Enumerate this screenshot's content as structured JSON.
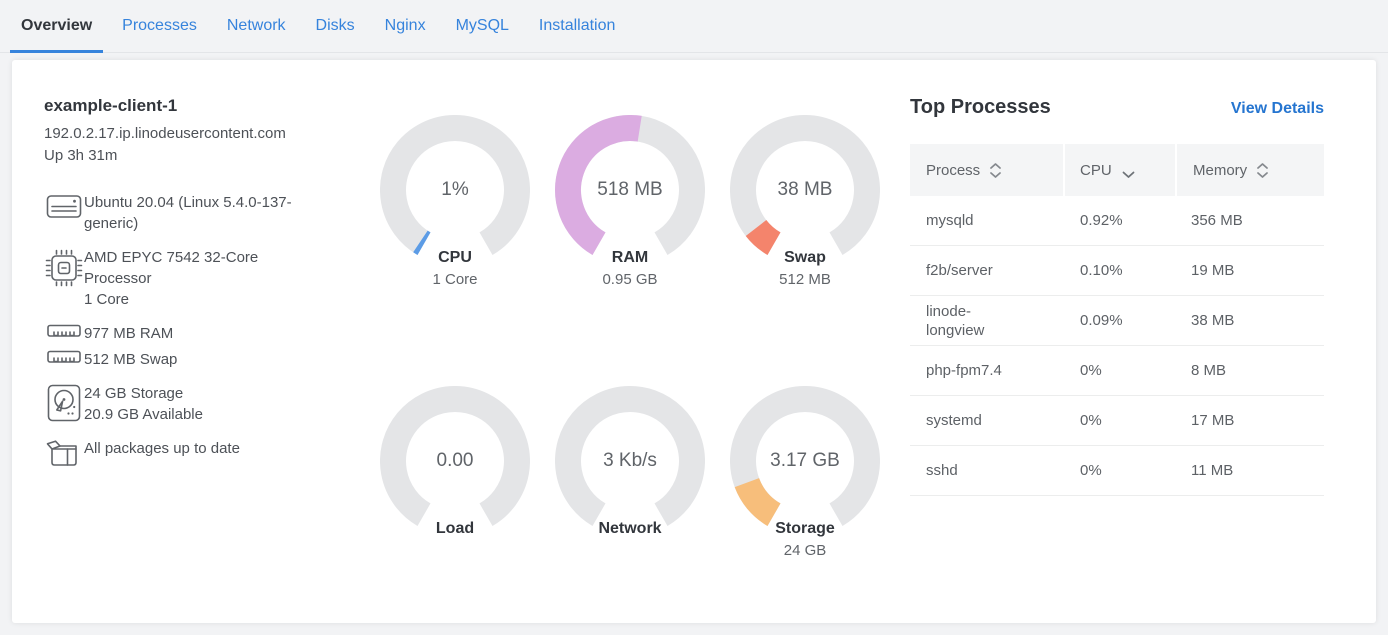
{
  "tabs": [
    {
      "label": "Overview",
      "active": true
    },
    {
      "label": "Processes",
      "active": false
    },
    {
      "label": "Network",
      "active": false
    },
    {
      "label": "Disks",
      "active": false
    },
    {
      "label": "Nginx",
      "active": false
    },
    {
      "label": "MySQL",
      "active": false
    },
    {
      "label": "Installation",
      "active": false
    }
  ],
  "system": {
    "title": "example-client-1",
    "hostname": "192.0.2.17.ip.linodeusercontent.com",
    "uptime": "Up 3h 31m",
    "details": [
      {
        "icon": "os-icon",
        "lines": [
          "Ubuntu 20.04 (Linux 5.4.0-137-generic)"
        ]
      },
      {
        "icon": "cpu-chip-icon",
        "lines": [
          "AMD EPYC 7542 32-Core Processor",
          "1 Core"
        ]
      },
      {
        "icon": "ram-stick-icon",
        "lines": [
          "977 MB RAM"
        ]
      },
      {
        "icon": "ram-stick-icon",
        "lines": [
          "512 MB Swap"
        ]
      },
      {
        "icon": "disk-icon",
        "lines": [
          "24 GB Storage",
          "20.9 GB Available"
        ]
      },
      {
        "icon": "package-box-icon",
        "lines": [
          "All packages up to date"
        ]
      }
    ]
  },
  "gauges": [
    {
      "id": "cpu",
      "value": "1%",
      "label": "CPU",
      "sublabel": "1 Core",
      "fraction": 0.013,
      "color": "#5C9CE6"
    },
    {
      "id": "ram",
      "value": "518 MB",
      "label": "RAM",
      "sublabel": "0.95 GB",
      "fraction": 0.53,
      "color": "#DBACE1"
    },
    {
      "id": "swap",
      "value": "38 MB",
      "label": "Swap",
      "sublabel": "512 MB",
      "fraction": 0.074,
      "color": "#F4846C"
    },
    {
      "id": "load",
      "value": "0.00",
      "label": "Load",
      "sublabel": "",
      "fraction": 0,
      "color": ""
    },
    {
      "id": "network",
      "value": "3 Kb/s",
      "label": "Network",
      "sublabel": "",
      "fraction": 0,
      "color": ""
    },
    {
      "id": "storage",
      "value": "3.17 GB",
      "label": "Storage",
      "sublabel": "24 GB",
      "fraction": 0.132,
      "color": "#F7BE7B"
    }
  ],
  "top_processes": {
    "title": "Top Processes",
    "view_details": "View Details",
    "columns": [
      {
        "label": "Process",
        "sort": "both"
      },
      {
        "label": "CPU",
        "sort": "desc"
      },
      {
        "label": "Memory",
        "sort": "both"
      }
    ],
    "rows": [
      {
        "process": "mysqld",
        "cpu": "0.92%",
        "memory": "356 MB"
      },
      {
        "process": "f2b/server",
        "cpu": "0.10%",
        "memory": "19 MB"
      },
      {
        "process": "linode-longview",
        "cpu": "0.09%",
        "memory": "38 MB"
      },
      {
        "process": "php-fpm7.4",
        "cpu": "0%",
        "memory": "8 MB"
      },
      {
        "process": "systemd",
        "cpu": "0%",
        "memory": "17 MB"
      },
      {
        "process": "sshd",
        "cpu": "0%",
        "memory": "11 MB"
      }
    ]
  },
  "colors": {
    "accent_blue": "#3683DC",
    "link_blue": "#2575D0",
    "text_dark": "#32363C",
    "text_gray": "#606469",
    "gauge_track": "#e4e5e7"
  }
}
